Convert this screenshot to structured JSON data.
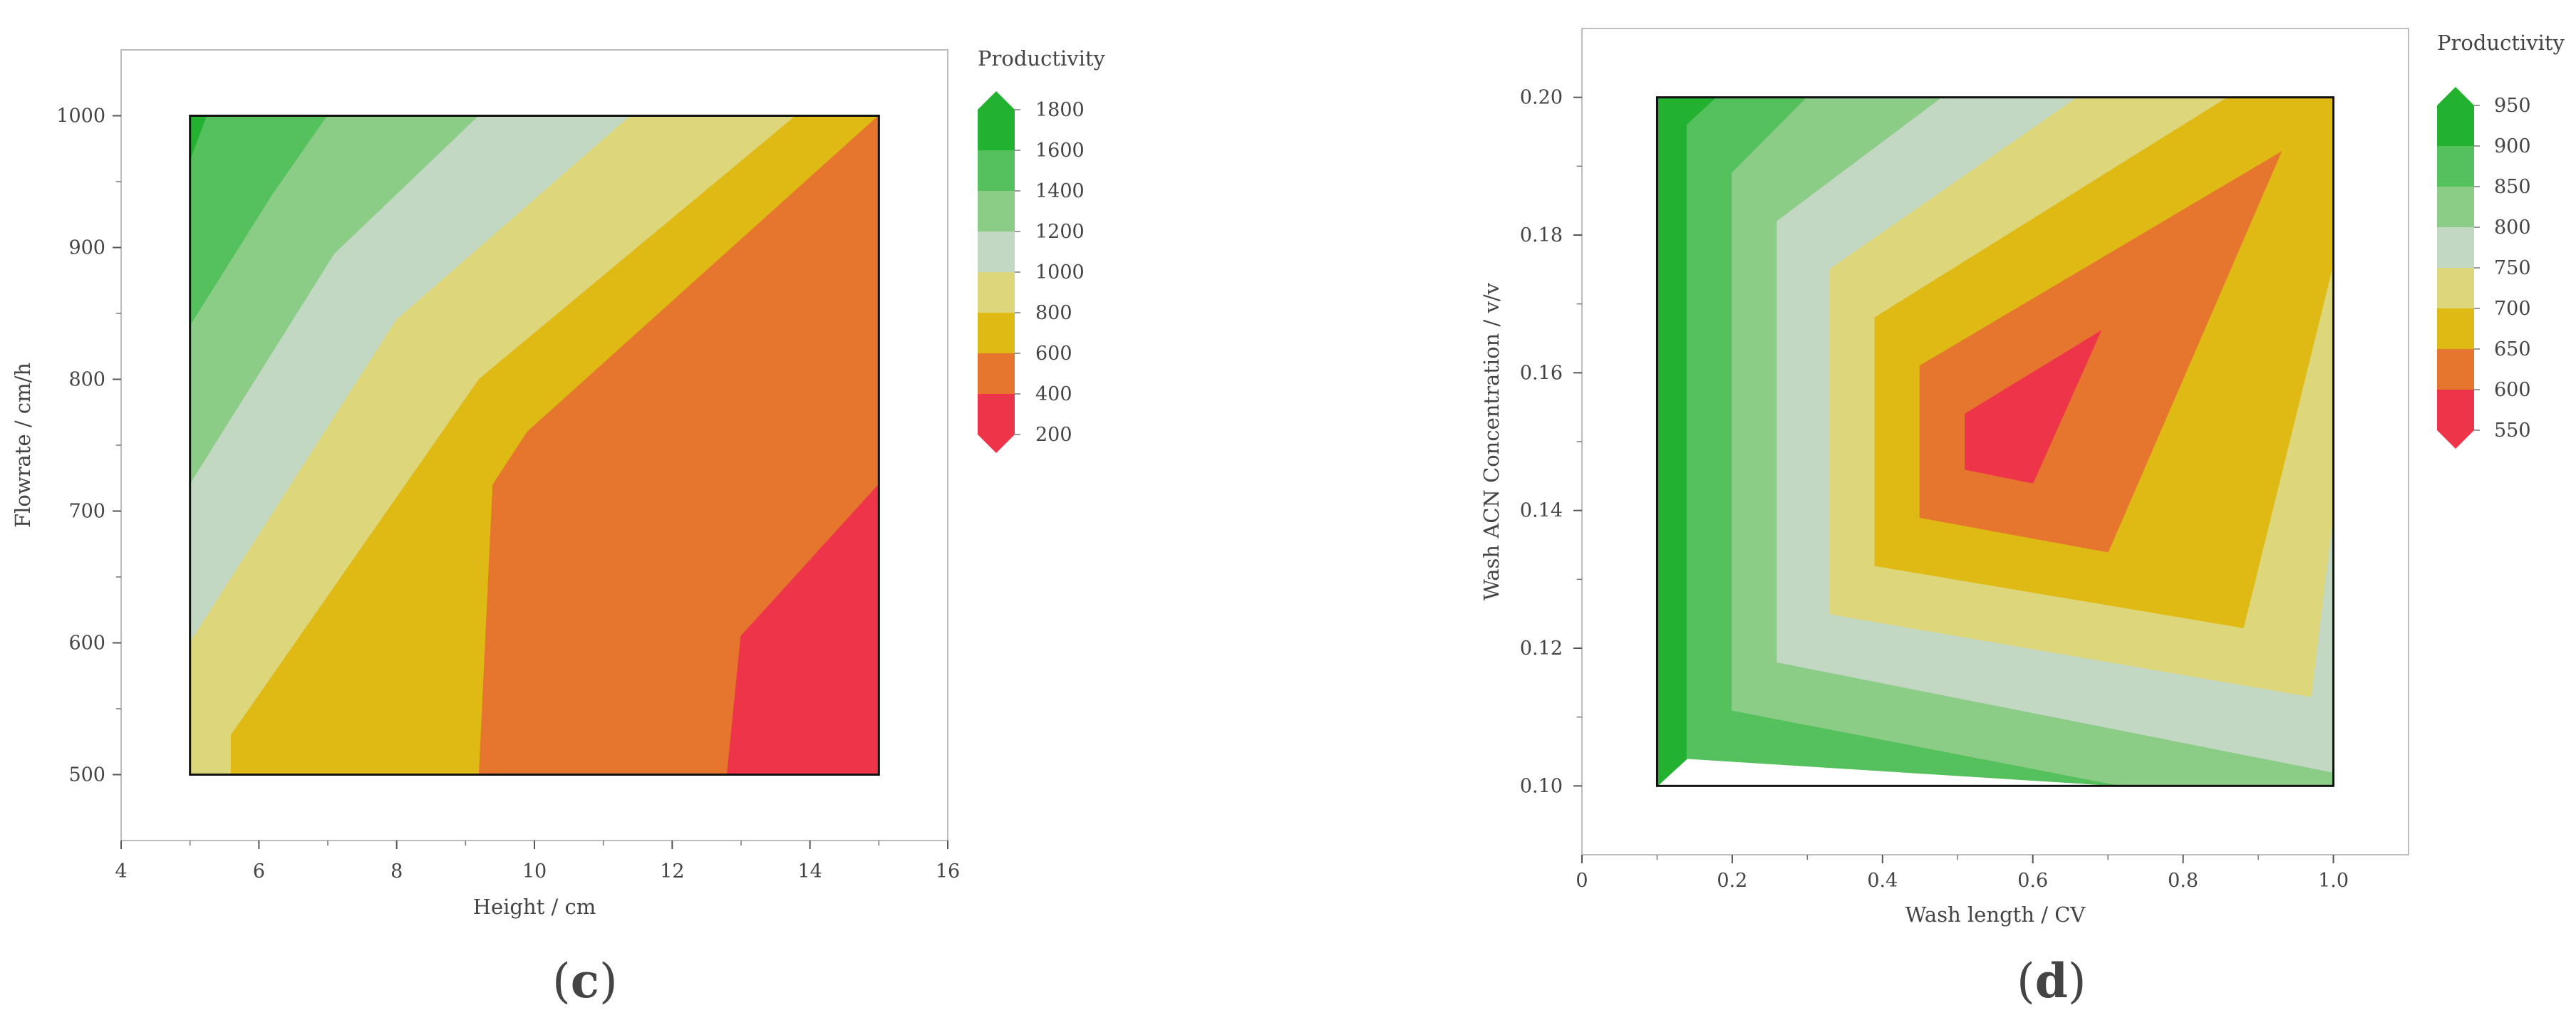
{
  "chart_data": [
    {
      "type": "contour",
      "panel_label": "c",
      "xlabel": "Height / cm",
      "ylabel": "Flowrate / cm/h",
      "xlim": [
        4,
        16
      ],
      "ylim": [
        450,
        1050
      ],
      "x_ticks": [
        4,
        6,
        8,
        10,
        12,
        14,
        16
      ],
      "x_tick_labels": [
        "4",
        "6",
        "8",
        "10",
        "12",
        "14",
        "16"
      ],
      "y_ticks": [
        500,
        600,
        700,
        800,
        900,
        1000
      ],
      "y_tick_labels": [
        "500",
        "600",
        "700",
        "800",
        "900",
        "1000"
      ],
      "data_region": {
        "x": [
          5,
          15
        ],
        "y": [
          500,
          1000
        ]
      },
      "legend": {
        "title": "Productivity",
        "labels": [
          "1800",
          "1600",
          "1400",
          "1200",
          "1000",
          "800",
          "600",
          "400",
          "200"
        ]
      },
      "regions": [
        {
          "min": 1600,
          "max": 1800,
          "color": "#22b230",
          "polygon": [
            [
              5,
              1000
            ],
            [
              5.25,
              1000
            ],
            [
              5,
              965
            ]
          ]
        },
        {
          "min": 1400,
          "max": 1600,
          "color": "#55c15c",
          "polygon": [
            [
              5.25,
              1000
            ],
            [
              7,
              1000
            ],
            [
              6.2,
              940
            ],
            [
              5,
              840
            ],
            [
              5,
              965
            ]
          ]
        },
        {
          "min": 1200,
          "max": 1400,
          "color": "#8bcc87",
          "polygon": [
            [
              7,
              1000
            ],
            [
              9.2,
              1000
            ],
            [
              7.1,
              895
            ],
            [
              5,
              720
            ],
            [
              5,
              840
            ],
            [
              6.2,
              940
            ]
          ]
        },
        {
          "min": 1000,
          "max": 1200,
          "color": "#c2d8c2",
          "polygon": [
            [
              9.2,
              1000
            ],
            [
              11.4,
              1000
            ],
            [
              8,
              845
            ],
            [
              5,
              600
            ],
            [
              5,
              720
            ],
            [
              7.1,
              895
            ]
          ]
        },
        {
          "min": 800,
          "max": 1000,
          "color": "#ddd67a",
          "polygon": [
            [
              11.4,
              1000
            ],
            [
              13.8,
              1000
            ],
            [
              9.2,
              800
            ],
            [
              5.6,
              530
            ],
            [
              5.6,
              500
            ],
            [
              5,
              500
            ],
            [
              5,
              600
            ],
            [
              8,
              845
            ]
          ]
        },
        {
          "min": 600,
          "max": 800,
          "color": "#dfb914",
          "polygon": [
            [
              13.8,
              1000
            ],
            [
              15,
              1000
            ],
            [
              9.9,
              760
            ],
            [
              9.4,
              720
            ],
            [
              9.2,
              500
            ],
            [
              5.6,
              500
            ],
            [
              5.6,
              530
            ],
            [
              9.2,
              800
            ]
          ]
        },
        {
          "min": 400,
          "max": 600,
          "color": "#e6762e",
          "polygon": [
            [
              15,
              1000
            ],
            [
              15,
              720
            ],
            [
              13,
              605
            ],
            [
              12.8,
              500
            ],
            [
              9.2,
              500
            ],
            [
              9.4,
              720
            ],
            [
              9.9,
              760
            ]
          ]
        },
        {
          "min": 200,
          "max": 400,
          "color": "#ee3448",
          "polygon": [
            [
              15,
              720
            ],
            [
              15,
              500
            ],
            [
              12.8,
              500
            ],
            [
              13,
              605
            ]
          ]
        }
      ]
    },
    {
      "type": "contour",
      "panel_label": "d",
      "xlabel": "Wash length / CV",
      "ylabel": "Wash ACN Concentration / v/v",
      "xlim": [
        0,
        1.1
      ],
      "ylim": [
        0.09,
        0.21
      ],
      "x_ticks": [
        0,
        0.2,
        0.4,
        0.6,
        0.8,
        1.0
      ],
      "x_tick_labels": [
        "0",
        "0.2",
        "0.4",
        "0.6",
        "0.8",
        "1.0"
      ],
      "y_ticks": [
        0.1,
        0.12,
        0.14,
        0.16,
        0.18,
        0.2
      ],
      "y_tick_labels": [
        "0.10",
        "0.12",
        "0.14",
        "0.16",
        "0.18",
        "0.20"
      ],
      "data_region": {
        "x": [
          0.1,
          1.0
        ],
        "y": [
          0.1,
          0.2
        ]
      },
      "legend": {
        "title": "Productivity",
        "labels": [
          "950",
          "900",
          "850",
          "800",
          "750",
          "700",
          "650",
          "600",
          "550"
        ]
      },
      "regions": [
        {
          "min": 900,
          "max": 950,
          "color": "#22b230",
          "polygon": [
            [
              0.1,
              0.2
            ],
            [
              0.1,
              0.1
            ],
            [
              0.14,
              0.104
            ],
            [
              0.14,
              0.196
            ],
            [
              0.18,
              0.2
            ]
          ]
        },
        {
          "min": 850,
          "max": 900,
          "color": "#55c15c",
          "polygon": [
            [
              0.18,
              0.2
            ],
            [
              0.14,
              0.196
            ],
            [
              0.14,
              0.104
            ],
            [
              0.72,
              0.1
            ],
            [
              0.2,
              0.111
            ],
            [
              0.2,
              0.189
            ],
            [
              0.3,
              0.2
            ]
          ]
        },
        {
          "min": 800,
          "max": 850,
          "color": "#8bcc87",
          "polygon": [
            [
              0.3,
              0.2
            ],
            [
              0.2,
              0.189
            ],
            [
              0.2,
              0.111
            ],
            [
              0.72,
              0.1
            ],
            [
              1.0,
              0.1
            ],
            [
              1.0,
              0.102
            ],
            [
              0.26,
              0.118
            ],
            [
              0.26,
              0.182
            ],
            [
              0.48,
              0.2
            ]
          ]
        },
        {
          "min": 750,
          "max": 800,
          "color": "#c2d8c2",
          "polygon": [
            [
              0.48,
              0.2
            ],
            [
              0.26,
              0.182
            ],
            [
              0.26,
              0.118
            ],
            [
              1.0,
              0.102
            ],
            [
              1.0,
              0.14
            ],
            [
              0.97,
              0.113
            ],
            [
              0.33,
              0.125
            ],
            [
              0.33,
              0.175
            ],
            [
              0.66,
              0.2
            ]
          ]
        },
        {
          "min": 700,
          "max": 750,
          "color": "#ddd67a",
          "polygon": [
            [
              0.66,
              0.2
            ],
            [
              0.33,
              0.175
            ],
            [
              0.33,
              0.125
            ],
            [
              0.97,
              0.113
            ],
            [
              1.0,
              0.14
            ],
            [
              1.0,
              0.176
            ],
            [
              0.88,
              0.123
            ],
            [
              0.39,
              0.132
            ],
            [
              0.39,
              0.168
            ],
            [
              0.86,
              0.2
            ]
          ]
        },
        {
          "min": 650,
          "max": 700,
          "color": "#dfb914",
          "polygon": [
            [
              0.86,
              0.2
            ],
            [
              0.39,
              0.168
            ],
            [
              0.39,
              0.132
            ],
            [
              0.88,
              0.123
            ],
            [
              1.0,
              0.176
            ],
            [
              1.0,
              0.2
            ]
          ]
        },
        {
          "min": 600,
          "max": 650,
          "color": "#e6762e",
          "polygon": [
            [
              0.45,
              0.161
            ],
            [
              0.45,
              0.139
            ],
            [
              0.7,
              0.134
            ],
            [
              0.93,
              0.192
            ]
          ]
        },
        {
          "min": 550,
          "max": 600,
          "color": "#ee3448",
          "polygon": [
            [
              0.51,
              0.154
            ],
            [
              0.51,
              0.146
            ],
            [
              0.6,
              0.144
            ],
            [
              0.69,
              0.166
            ]
          ]
        }
      ]
    }
  ]
}
